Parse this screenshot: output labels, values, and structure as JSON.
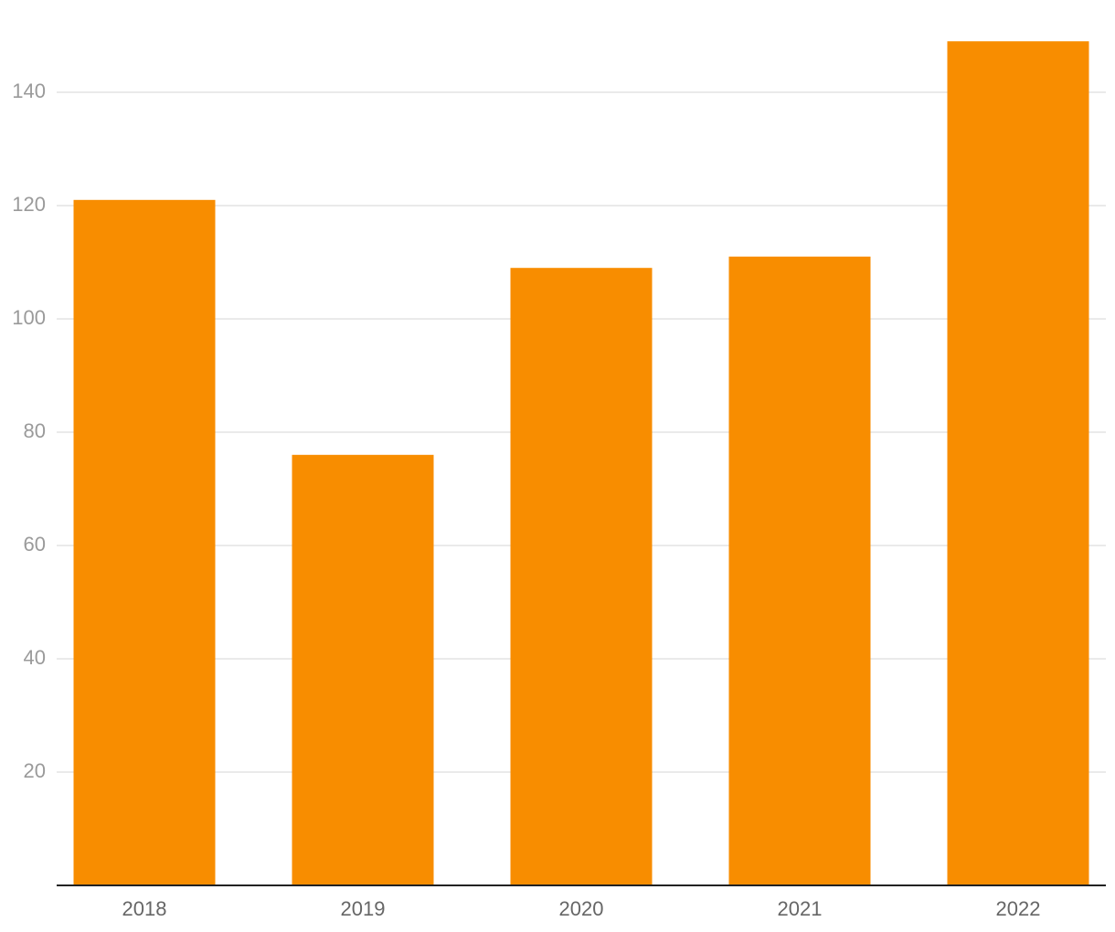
{
  "chart_data": {
    "type": "bar",
    "categories": [
      "2018",
      "2019",
      "2020",
      "2021",
      "2022"
    ],
    "values": [
      121,
      76,
      109,
      111,
      149
    ],
    "color": "#f88d00",
    "ylim": [
      0,
      150
    ],
    "yticks": [
      20,
      40,
      60,
      80,
      100,
      120,
      140
    ],
    "grid": true
  }
}
